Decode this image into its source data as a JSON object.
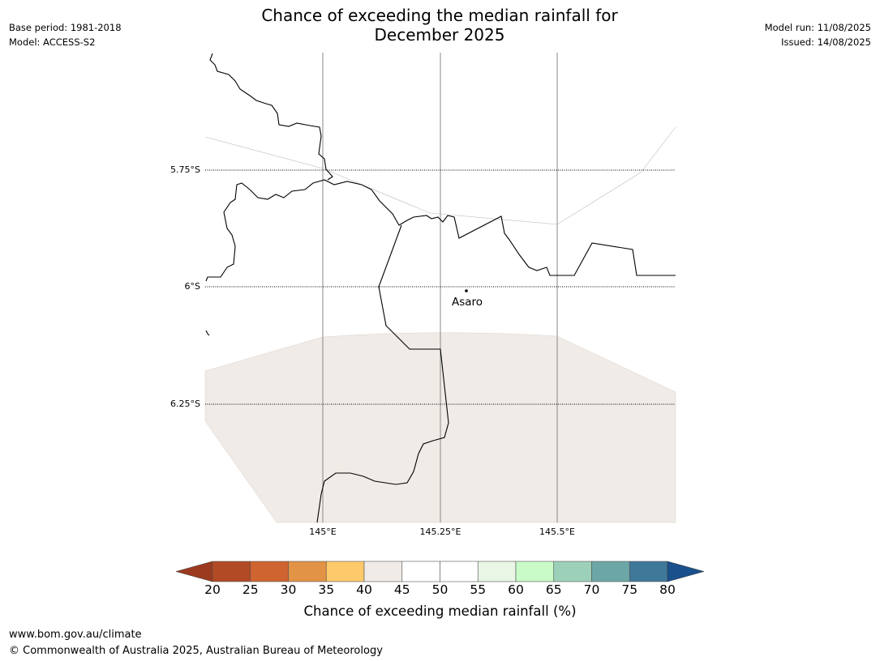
{
  "title_line1": "Chance of exceeding the median rainfall for",
  "title_line2": "December 2025",
  "meta_left": [
    "Base period: 1981-2018",
    "Model: ACCESS-S2"
  ],
  "meta_right": [
    "Model run: 11/08/2025",
    "Issued: 14/08/2025"
  ],
  "latitude_labels": [
    "5.75°S",
    "6°S",
    "6.25°S"
  ],
  "longitude_labels": [
    "145°E",
    "145.25°E",
    "145.5°E"
  ],
  "place": {
    "name": "Asaro"
  },
  "forecast_fill_color": "#f0ebe6",
  "colorbar": {
    "title": "Chance of exceeding median rainfall (%)",
    "ticks": [
      "20",
      "25",
      "30",
      "35",
      "40",
      "45",
      "50",
      "55",
      "60",
      "65",
      "70",
      "75",
      "80"
    ],
    "under_color": "#9b3a1f",
    "over_color": "#1a508b",
    "colors": [
      "#b24a25",
      "#cf6430",
      "#e29346",
      "#fdc96a",
      "#f0ebe6",
      "#ffffff",
      "#ffffff",
      "#e9f6e6",
      "#c8fbc8",
      "#9dd0b9",
      "#6da6a6",
      "#40789a"
    ]
  },
  "footer": {
    "url": "www.bom.gov.au/climate",
    "copyright": "© Commonwealth of Australia 2025, Australian Bureau of Meteorology"
  }
}
